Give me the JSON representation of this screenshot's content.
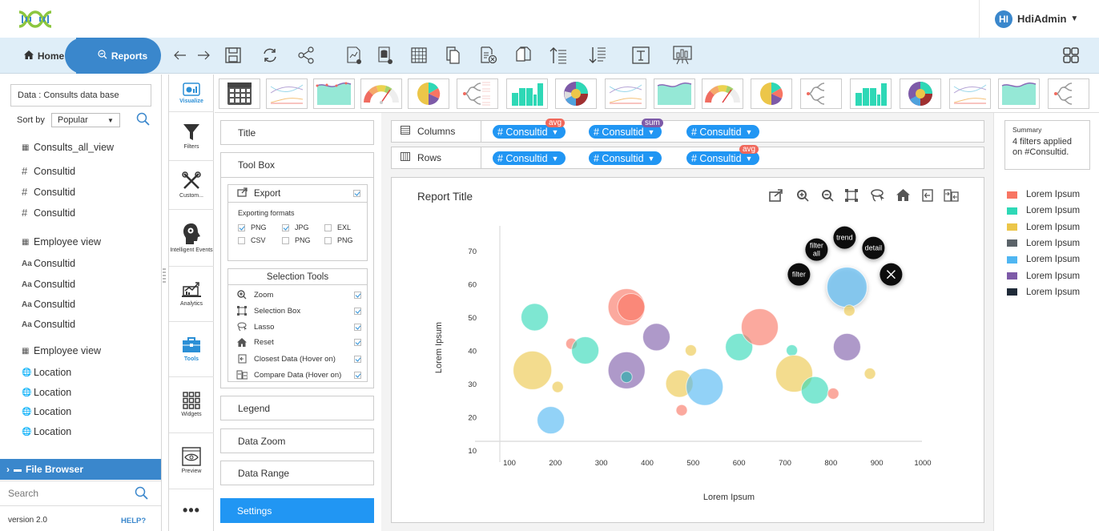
{
  "header": {
    "user": {
      "initials": "HI",
      "name": "HdiAdmin"
    }
  },
  "nav": {
    "home_label": "Home",
    "reports_label": "Reports",
    "toolbar_icons": [
      "arrow-left-icon",
      "arrow-right-icon",
      "save-icon",
      "refresh-icon",
      "share-icon",
      "new-chart-icon",
      "new-datasource-icon",
      "table-icon",
      "copy-icon",
      "delete-file-icon",
      "duplicate-icon",
      "sort-ascending-icon",
      "sort-descending-icon",
      "text-icon",
      "presentation-icon"
    ],
    "grid_icon": "grid-layout-icon"
  },
  "left_panel": {
    "data_label": "Data :  Consults data base",
    "sort_label": "Sort by",
    "sort_value": "Popular",
    "groups": [
      {
        "type": "table",
        "label": "Consults_all_view",
        "items": [
          {
            "type": "number",
            "label": "Consultid"
          },
          {
            "type": "number",
            "label": "Consultid"
          },
          {
            "type": "number",
            "label": "Consultid"
          }
        ]
      },
      {
        "type": "table",
        "label": "Employee view",
        "items": [
          {
            "type": "text",
            "label": "Consultid"
          },
          {
            "type": "text",
            "label": "Consultid"
          },
          {
            "type": "text",
            "label": "Consultid"
          },
          {
            "type": "text",
            "label": "Consultid"
          }
        ]
      },
      {
        "type": "table",
        "label": "Employee view",
        "items": [
          {
            "type": "geo",
            "label": "Location"
          },
          {
            "type": "geo",
            "label": "Location"
          },
          {
            "type": "geo",
            "label": "Location"
          },
          {
            "type": "geo",
            "label": "Location"
          }
        ]
      }
    ],
    "file_browser_label": "File Browser",
    "search_placeholder": "Search",
    "version": "version 2.0",
    "help": "HELP?"
  },
  "sidebar": {
    "items": [
      {
        "label": "Visualize",
        "icon": "visualize-icon",
        "active": true
      },
      {
        "label": "Filters",
        "icon": "funnel-icon",
        "active": false
      },
      {
        "label": "Custom...",
        "icon": "tools-cross-icon",
        "active": false
      },
      {
        "label": "Intelligent Events",
        "icon": "brain-gear-icon",
        "active": false
      },
      {
        "label": "Analytics",
        "icon": "analytics-icon",
        "active": false
      },
      {
        "label": "Tools",
        "icon": "toolbox-icon",
        "active": true
      },
      {
        "label": "Widgets",
        "icon": "widgets-grid-icon",
        "active": false
      },
      {
        "label": "Preview",
        "icon": "preview-eye-icon",
        "active": false
      },
      {
        "label": "•••",
        "icon": "more-icon",
        "active": false
      }
    ]
  },
  "chart_types": [
    "table",
    "multi-line",
    "area",
    "gauge",
    "pie",
    "tree",
    "bar",
    "sunburst",
    "multi-line",
    "area",
    "gauge",
    "pie",
    "tree",
    "bar",
    "sunburst",
    "multi-line",
    "area",
    "tree"
  ],
  "config": {
    "title_label": "Title",
    "toolbox_label": "Tool Box",
    "export": {
      "label": "Export",
      "checked": true,
      "formats_label": "Exporting formats",
      "formats": [
        {
          "label": "PNG",
          "checked": true
        },
        {
          "label": "JPG",
          "checked": true
        },
        {
          "label": "EXL",
          "checked": false
        },
        {
          "label": "CSV",
          "checked": false
        },
        {
          "label": "PNG",
          "checked": false
        },
        {
          "label": "PNG",
          "checked": false
        }
      ]
    },
    "selection_tools": {
      "label": "Selection Tools",
      "items": [
        {
          "label": "Zoom",
          "checked": true
        },
        {
          "label": "Selection Box",
          "checked": true
        },
        {
          "label": "Lasso",
          "checked": true
        },
        {
          "label": "Reset",
          "checked": true
        },
        {
          "label": "Closest Data (Hover on)",
          "checked": true
        },
        {
          "label": "Compare Data (Hover on)",
          "checked": true
        }
      ]
    },
    "legend_label": "Legend",
    "data_zoom_label": "Data Zoom",
    "data_range_label": "Data Range",
    "settings_label": "Settings"
  },
  "shelves": {
    "columns": {
      "label": "Columns",
      "pills": [
        {
          "label": "# Consultid",
          "badge": "avg",
          "badge_color": "#f0675a"
        },
        {
          "label": "# Consultid",
          "badge": "sum",
          "badge_color": "#7d5aa8"
        },
        {
          "label": "# Consultid",
          "badge": null
        }
      ]
    },
    "rows": {
      "label": "Rows",
      "pills": [
        {
          "label": "# Consultid",
          "badge": null
        },
        {
          "label": "# Consultid",
          "badge": null
        },
        {
          "label": "# Consultid",
          "badge": "avg",
          "badge_color": "#f0675a"
        }
      ]
    }
  },
  "report": {
    "title": "Report Title",
    "tools": [
      "export-icon",
      "zoom-in-icon",
      "zoom-out-icon",
      "selection-box-icon",
      "lasso-icon",
      "home-reset-icon",
      "closest-data-icon",
      "compare-data-icon"
    ],
    "radial_menu": [
      "filter",
      "filter all",
      "trend",
      "detail",
      "close"
    ]
  },
  "summary": {
    "title": "Summary",
    "text": "4 filters applied on #Consultid."
  },
  "legend": [
    {
      "label": "Lorem Ipsum",
      "color": "#f87563"
    },
    {
      "label": "Lorem Ipsum",
      "color": "#2ed8b6"
    },
    {
      "label": "Lorem Ipsum",
      "color": "#ecc649"
    },
    {
      "label": "Lorem Ipsum",
      "color": "#5b6369"
    },
    {
      "label": "Lorem Ipsum",
      "color": "#4fb6f2"
    },
    {
      "label": "Lorem Ipsum",
      "color": "#7d5aa8"
    },
    {
      "label": "Lorem Ipsum",
      "color": "#1f2a38"
    }
  ],
  "chart_data": {
    "type": "scatter",
    "subtype": "bubble",
    "title": "Report Title",
    "xlabel": "Lorem Ipsum",
    "ylabel": "Lorem Ipsum",
    "xlim": [
      100,
      1000
    ],
    "ylim": [
      10,
      70
    ],
    "x_ticks": [
      100,
      200,
      300,
      400,
      500,
      600,
      700,
      800,
      900,
      1000
    ],
    "y_ticks": [
      10,
      20,
      30,
      40,
      50,
      60,
      70
    ],
    "grid": false,
    "legend_position": "right",
    "points": [
      {
        "x": 155,
        "y": 50,
        "r": 17,
        "color": "#2ed8b6"
      },
      {
        "x": 150,
        "y": 34,
        "r": 24,
        "color": "#ecc649"
      },
      {
        "x": 205,
        "y": 29,
        "r": 7,
        "color": "#ecc649"
      },
      {
        "x": 190,
        "y": 19,
        "r": 17,
        "color": "#4fb6f2"
      },
      {
        "x": 235,
        "y": 42,
        "r": 7,
        "color": "#f87563"
      },
      {
        "x": 265,
        "y": 40,
        "r": 17,
        "color": "#2ed8b6"
      },
      {
        "x": 355,
        "y": 53,
        "r": 23,
        "color": "#f87563"
      },
      {
        "x": 365,
        "y": 53,
        "r": 17,
        "color": "#f87563"
      },
      {
        "x": 420,
        "y": 44,
        "r": 17,
        "color": "#7d5aa8"
      },
      {
        "x": 355,
        "y": 34,
        "r": 23,
        "color": "#7d5aa8"
      },
      {
        "x": 355,
        "y": 32,
        "r": 7,
        "color": "#20b2aa"
      },
      {
        "x": 495,
        "y": 40,
        "r": 7,
        "color": "#ecc649"
      },
      {
        "x": 470,
        "y": 30,
        "r": 17,
        "color": "#ecc649"
      },
      {
        "x": 525,
        "y": 29,
        "r": 23,
        "color": "#4fb6f2"
      },
      {
        "x": 475,
        "y": 22,
        "r": 7,
        "color": "#f87563"
      },
      {
        "x": 600,
        "y": 41,
        "r": 17,
        "color": "#2ed8b6"
      },
      {
        "x": 645,
        "y": 47,
        "r": 23,
        "color": "#f87563"
      },
      {
        "x": 715,
        "y": 40,
        "r": 7,
        "color": "#2ed8b6"
      },
      {
        "x": 720,
        "y": 33,
        "r": 23,
        "color": "#ecc649"
      },
      {
        "x": 765,
        "y": 28,
        "r": 17,
        "color": "#2ed8b6"
      },
      {
        "x": 805,
        "y": 27,
        "r": 7,
        "color": "#f87563"
      },
      {
        "x": 835,
        "y": 41,
        "r": 17,
        "color": "#7d5aa8"
      },
      {
        "x": 885,
        "y": 33,
        "r": 7,
        "color": "#ecc649"
      },
      {
        "x": 835,
        "y": 59,
        "r": 25,
        "color": "#4fb6f2",
        "selected": true
      },
      {
        "x": 840,
        "y": 52,
        "r": 7,
        "color": "#ecc649"
      }
    ]
  }
}
